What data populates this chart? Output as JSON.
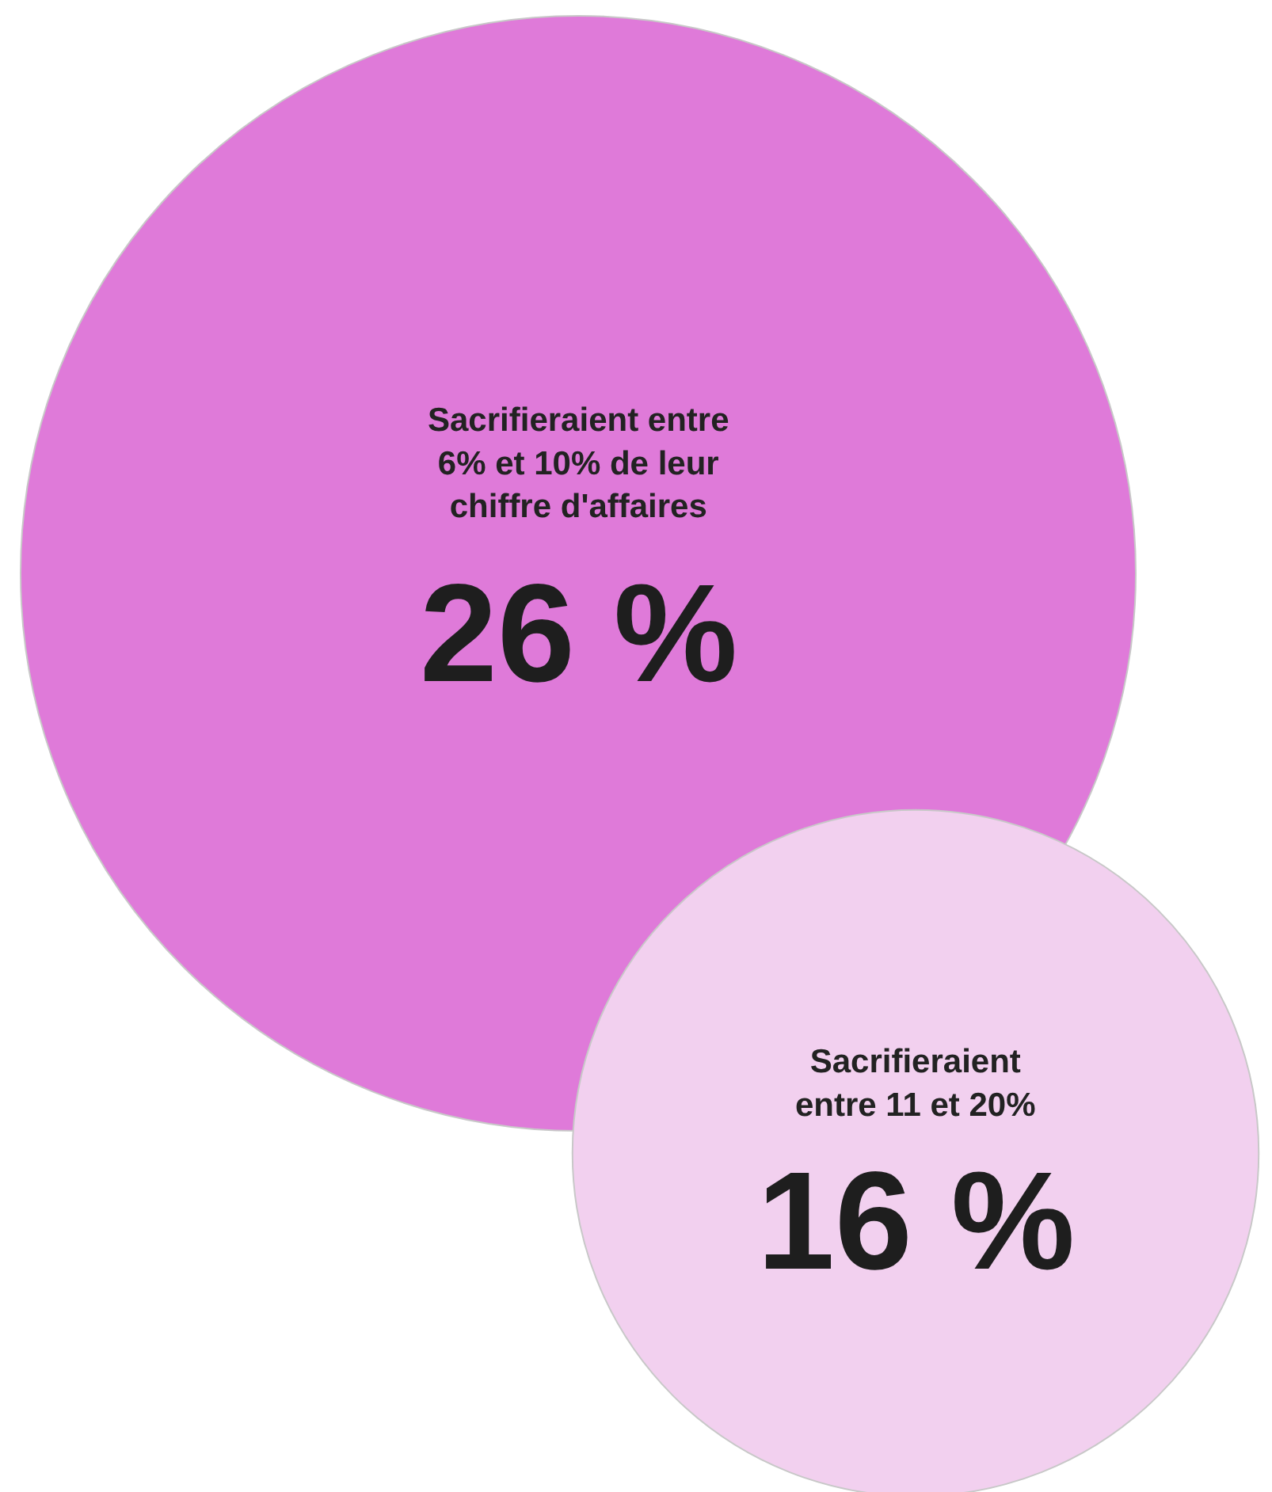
{
  "chart_data": {
    "type": "other",
    "categories": [
      "Sacrifieraient entre 6% et 10% de leur chiffre d'affaires",
      "Sacrifieraient entre 11 et 20%"
    ],
    "values": [
      26,
      16
    ],
    "value_labels": [
      "26 %",
      "16 %"
    ],
    "colors": [
      "#df7ad9",
      "#f2d0ef"
    ]
  }
}
